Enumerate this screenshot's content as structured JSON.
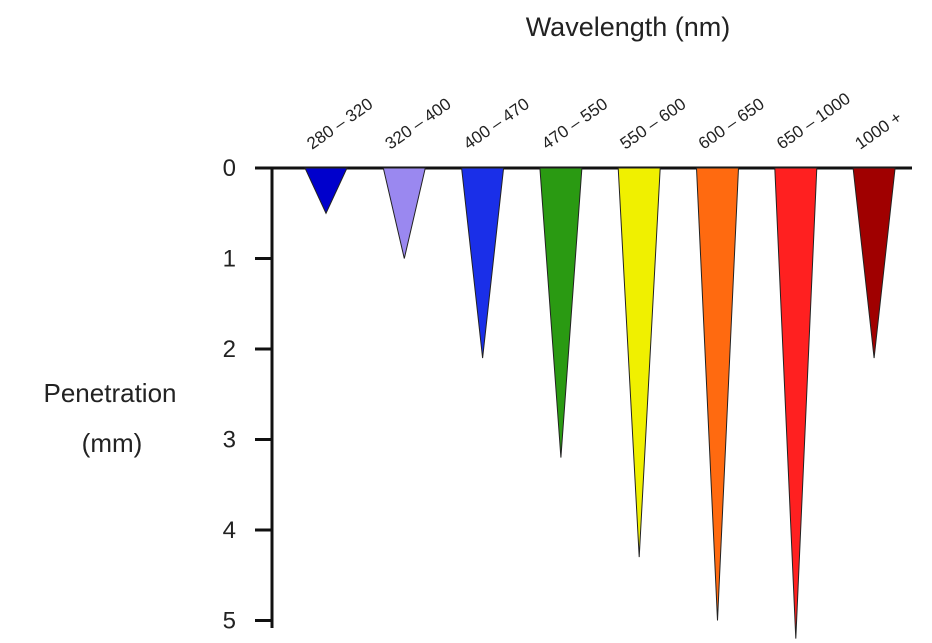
{
  "chart_data": {
    "type": "bar",
    "title": "Wavelength (nm)",
    "xlabel": "",
    "ylabel_line1": "Penetration",
    "ylabel_line2": "(mm)",
    "categories": [
      "280 – 320",
      "320 – 400",
      "400 – 470",
      "470 – 550",
      "550 – 600",
      "600 – 650",
      "650 – 1000",
      "1000 +"
    ],
    "values": [
      0.5,
      1.0,
      2.1,
      3.2,
      4.3,
      5.0,
      5.2,
      2.1
    ],
    "colors": [
      "#0000cc",
      "#9a88f0",
      "#1a2fe8",
      "#2a9a12",
      "#f0f000",
      "#ff6a10",
      "#ff2020",
      "#a00000"
    ],
    "yticks": [
      "0",
      "1",
      "2",
      "3",
      "4",
      "5"
    ],
    "ylim": [
      0,
      5
    ],
    "y_inverted": true,
    "mark_shape": "inverted triangle",
    "grid": false
  }
}
